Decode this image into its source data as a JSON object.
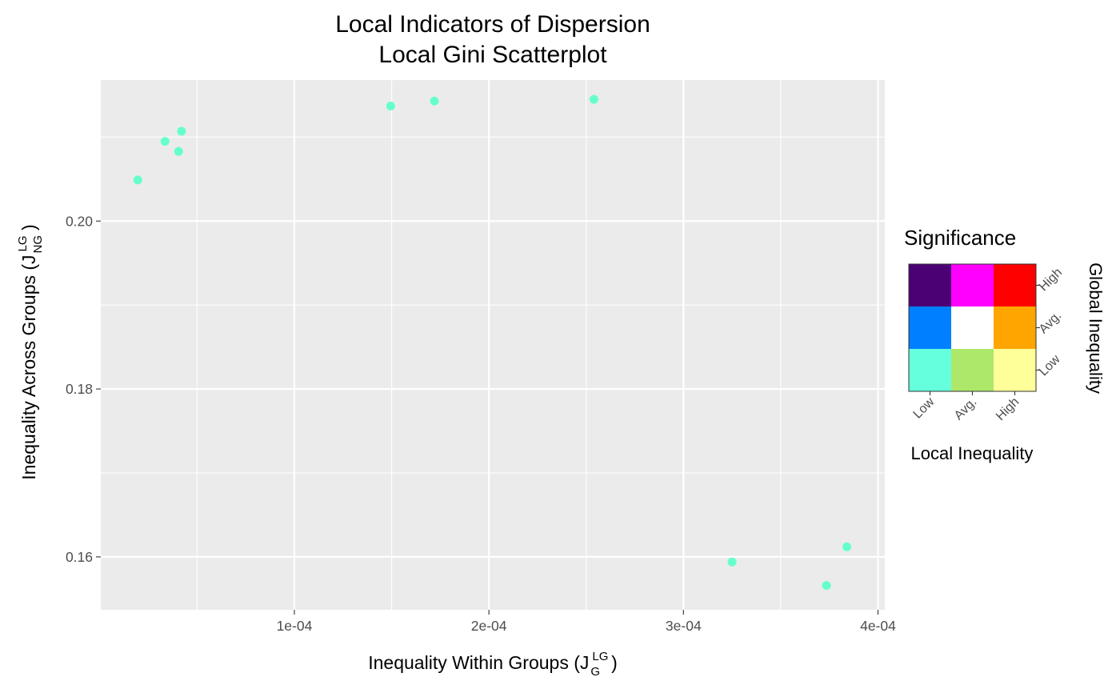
{
  "chart_data": {
    "type": "scatter",
    "title": [
      "Local Indicators of Dispersion",
      "Local Gini Scatterplot"
    ],
    "xlabel": {
      "text": "Inequality Within Groups (J",
      "sup": "LG",
      "sub": "G",
      "close": ")"
    },
    "ylabel": {
      "text": "Inequality Across Groups (J",
      "sup": "LG",
      "sub": "NG",
      "close": ")"
    },
    "xlim": [
      5e-07,
      0.0004035
    ],
    "ylim": [
      0.1537,
      0.2168
    ],
    "x_major_ticks": [
      0.0001,
      0.0002,
      0.0003,
      0.0004
    ],
    "x_tick_labels": [
      "1e-04",
      "2e-04",
      "3e-04",
      "4e-04"
    ],
    "x_minor_ticks": [
      5e-05,
      0.00015,
      0.00025,
      0.00035
    ],
    "y_major_ticks": [
      0.16,
      0.18,
      0.2
    ],
    "y_tick_labels": [
      "0.16",
      "0.18",
      "0.20"
    ],
    "y_minor_ticks": [
      0.17,
      0.19,
      0.21
    ],
    "grid": true,
    "point_color": "#66FFCC",
    "panel_background": "#EBEBEB",
    "points": [
      {
        "x": 1.95e-05,
        "y": 0.2049
      },
      {
        "x": 3.35e-05,
        "y": 0.2095
      },
      {
        "x": 4.05e-05,
        "y": 0.2083
      },
      {
        "x": 4.2e-05,
        "y": 0.2107
      },
      {
        "x": 0.0001495,
        "y": 0.2137
      },
      {
        "x": 0.000172,
        "y": 0.2143
      },
      {
        "x": 0.000254,
        "y": 0.2145
      },
      {
        "x": 0.000325,
        "y": 0.1594
      },
      {
        "x": 0.0003735,
        "y": 0.1566
      },
      {
        "x": 0.000384,
        "y": 0.1612
      }
    ],
    "legend": {
      "title": "Significance",
      "position": "right",
      "x_title": "Local Inequality",
      "y_title": "Global Inequality",
      "x_levels": [
        "Low",
        "Avg.",
        "High"
      ],
      "y_levels": [
        "Low",
        "Avg.",
        "High"
      ],
      "colors_top_to_bottom": [
        [
          "#4B0074",
          "#FF00FF",
          "#FF0000"
        ],
        [
          "#0080FF",
          "#FFFFFF",
          "#FFA500"
        ],
        [
          "#66FFDD",
          "#AEE86A",
          "#FFFF99"
        ]
      ]
    }
  }
}
